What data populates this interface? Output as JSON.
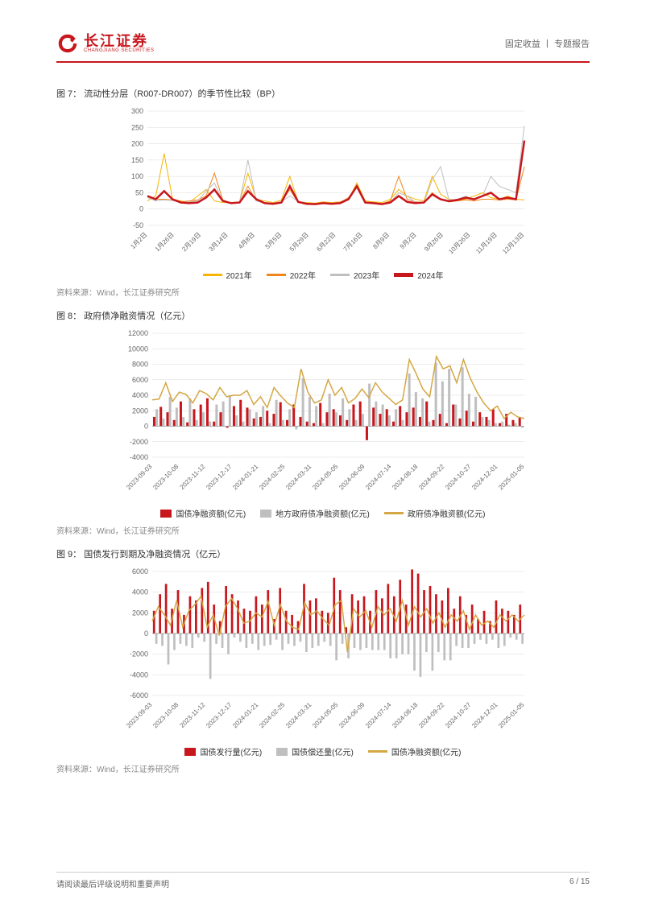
{
  "header": {
    "logo_cn": "长江证券",
    "logo_en": "CHANGJIANG SECURITIES",
    "right_text": "固定收益 丨 专题报告"
  },
  "chart7": {
    "type": "line",
    "caption_label": "图 7：",
    "caption_title": "流动性分层（R007-DR007）的季节性比较（BP）",
    "ylim": [
      -50,
      300
    ],
    "ytick_step": 50,
    "yticks": [
      -50,
      0,
      50,
      100,
      150,
      200,
      250,
      300
    ],
    "x_labels": [
      "1月2日",
      "1月26日",
      "2月19日",
      "3月14日",
      "4月8日",
      "5月5日",
      "5月29日",
      "6月22日",
      "7月16日",
      "8月9日",
      "9月2日",
      "9月26日",
      "10月26日",
      "11月19日",
      "12月13日"
    ],
    "series": [
      {
        "name": "2021年",
        "color": "#f7b500",
        "width": 1,
        "values": [
          25,
          40,
          170,
          30,
          25,
          20,
          40,
          60,
          25,
          20,
          20,
          22,
          110,
          30,
          25,
          20,
          28,
          100,
          22,
          20,
          18,
          22,
          20,
          22,
          30,
          80,
          25,
          22,
          20,
          30,
          60,
          40,
          30,
          25,
          100,
          45,
          30,
          28,
          30,
          40,
          50,
          35,
          30,
          40,
          30,
          28
        ]
      },
      {
        "name": "2022年",
        "color": "#f08519",
        "width": 1,
        "values": [
          40,
          30,
          30,
          28,
          22,
          25,
          28,
          40,
          110,
          28,
          18,
          20,
          70,
          25,
          20,
          18,
          22,
          60,
          20,
          18,
          16,
          18,
          18,
          20,
          35,
          70,
          20,
          18,
          16,
          25,
          100,
          30,
          22,
          20,
          50,
          30,
          22,
          25,
          28,
          25,
          30,
          30,
          28,
          30,
          28,
          130
        ]
      },
      {
        "name": "2023年",
        "color": "#bfbfbf",
        "width": 1,
        "values": [
          35,
          25,
          28,
          26,
          20,
          22,
          25,
          55,
          80,
          25,
          18,
          22,
          150,
          25,
          20,
          18,
          22,
          40,
          24,
          18,
          16,
          18,
          18,
          20,
          30,
          65,
          18,
          16,
          14,
          22,
          50,
          40,
          20,
          18,
          90,
          130,
          28,
          30,
          40,
          28,
          40,
          100,
          70,
          60,
          50,
          255
        ]
      },
      {
        "name": "2024年",
        "color": "#c8161d",
        "width": 2.5,
        "values": [
          40,
          30,
          55,
          30,
          20,
          18,
          20,
          35,
          60,
          25,
          18,
          20,
          55,
          30,
          18,
          16,
          20,
          70,
          22,
          16,
          15,
          18,
          16,
          18,
          30,
          70,
          20,
          18,
          15,
          20,
          40,
          22,
          18,
          20,
          45,
          30,
          24,
          28,
          35,
          30,
          40,
          50,
          30,
          35,
          30,
          210
        ]
      }
    ],
    "background_color": "#ffffff",
    "grid_color": "#d9d9d9",
    "axis_color": "#999999",
    "label_fontsize": 9,
    "source": "资料来源：Wind，长江证券研究所"
  },
  "chart8": {
    "type": "bar+line",
    "caption_label": "图 8：",
    "caption_title": "政府债净融资情况（亿元）",
    "ylim": [
      -4000,
      12000
    ],
    "ytick_step": 2000,
    "yticks": [
      -4000,
      -2000,
      0,
      2000,
      4000,
      6000,
      8000,
      10000,
      12000
    ],
    "x_labels": [
      "2023-09-03",
      "2023-10-08",
      "2023-11-12",
      "2023-12-17",
      "2024-01-21",
      "2024-02-25",
      "2024-03-31",
      "2024-05-05",
      "2024-06-09",
      "2024-07-14",
      "2024-08-18",
      "2024-09-22",
      "2024-10-27",
      "2024-12-01",
      "2025-01-05"
    ],
    "bar_series": [
      {
        "name": "国债净融资额(亿元)",
        "color": "#c8161d",
        "values": [
          1200,
          2500,
          1800,
          800,
          3200,
          500,
          2200,
          2800,
          3600,
          600,
          1800,
          -200,
          2600,
          3400,
          2400,
          1000,
          1200,
          2000,
          1600,
          3100,
          800,
          2800,
          1200,
          600,
          400,
          3000,
          1800,
          2200,
          1400,
          800,
          2800,
          3200,
          -1800,
          2400,
          1600,
          2200,
          600,
          2600,
          1800,
          2400,
          1200,
          3200,
          800,
          1600,
          400,
          2800,
          1000,
          2000,
          600,
          1800,
          1200,
          2200,
          400,
          1600,
          800,
          1200
        ]
      },
      {
        "name": "地方政府债净融资额(亿元)",
        "color": "#bfbfbf",
        "values": [
          2200,
          1000,
          3800,
          2400,
          1200,
          3600,
          800,
          1800,
          600,
          2800,
          3200,
          4000,
          1400,
          600,
          2200,
          1800,
          2600,
          400,
          3400,
          800,
          2200,
          -400,
          6200,
          3800,
          2600,
          400,
          4200,
          1800,
          3600,
          2200,
          800,
          1600,
          5500,
          3200,
          2800,
          1400,
          2200,
          800,
          6800,
          4400,
          3600,
          600,
          8200,
          5800,
          7400,
          2800,
          7600,
          4200,
          3800,
          1200,
          800,
          400,
          600,
          200,
          400,
          -200
        ]
      }
    ],
    "line_series": [
      {
        "name": "政府债净融资额(亿元)",
        "color": "#d4a744",
        "width": 1.5,
        "values": [
          3400,
          3500,
          5600,
          3200,
          4400,
          4100,
          3000,
          4600,
          4200,
          3400,
          5000,
          3800,
          4000,
          4000,
          4600,
          2800,
          3800,
          2400,
          5000,
          3900,
          3000,
          2400,
          7400,
          4400,
          3000,
          3400,
          6000,
          4000,
          5000,
          3000,
          3600,
          4800,
          3700,
          5600,
          4400,
          3600,
          2800,
          3400,
          8600,
          6800,
          4800,
          3800,
          9000,
          7400,
          7800,
          5600,
          8600,
          6200,
          4400,
          3000,
          2000,
          2600,
          1000,
          1800,
          1200,
          1000
        ]
      }
    ],
    "background_color": "#ffffff",
    "grid_color": "#d9d9d9",
    "axis_color": "#999999",
    "label_fontsize": 9,
    "source": "资料来源：Wind，长江证券研究所"
  },
  "chart9": {
    "type": "bar+line",
    "caption_label": "图 9：",
    "caption_title": "国债发行到期及净融资情况（亿元）",
    "ylim": [
      -6000,
      6000
    ],
    "ytick_step": 2000,
    "yticks": [
      -6000,
      -4000,
      -2000,
      0,
      2000,
      4000,
      6000
    ],
    "x_labels": [
      "2023-09-03",
      "2023-10-08",
      "2023-11-12",
      "2023-12-17",
      "2024-01-21",
      "2024-02-25",
      "2024-03-31",
      "2024-05-05",
      "2024-06-09",
      "2024-07-14",
      "2024-08-18",
      "2024-09-22",
      "2024-10-27",
      "2024-12-01",
      "2025-01-05"
    ],
    "bar_series": [
      {
        "name": "国债发行量(亿元)",
        "color": "#c8161d",
        "values": [
          2200,
          3800,
          4800,
          2400,
          4200,
          1800,
          3600,
          3200,
          4400,
          5000,
          2800,
          1200,
          4600,
          3800,
          3200,
          2400,
          2200,
          3600,
          2800,
          4200,
          1400,
          4400,
          2200,
          1800,
          1200,
          4800,
          3200,
          3400,
          2200,
          2000,
          5400,
          4200,
          600,
          3800,
          3200,
          3600,
          2200,
          4200,
          3400,
          4800,
          3600,
          5200,
          2800,
          6200,
          5800,
          4200,
          4600,
          3800,
          3200,
          4400,
          2400,
          3600,
          1800,
          2800,
          1400,
          2200,
          1200,
          3200,
          2400,
          2200,
          1800,
          2800
        ]
      },
      {
        "name": "国债偿还量(亿元)",
        "color": "#bfbfbf",
        "values": [
          -1000,
          -1200,
          -3000,
          -1600,
          -1000,
          -1200,
          -1400,
          -400,
          -800,
          -4400,
          -1000,
          -1400,
          -2000,
          -400,
          -800,
          -1400,
          -1000,
          -1600,
          -1200,
          -1100,
          -600,
          -1600,
          -1000,
          -1200,
          -800,
          -1800,
          -1400,
          -1200,
          -800,
          -1200,
          -2600,
          -1000,
          -2400,
          -1400,
          -1600,
          -1400,
          -1600,
          -1600,
          -1600,
          -2400,
          -2400,
          -2000,
          -2000,
          -3600,
          -4200,
          -1800,
          -3600,
          -1800,
          -2600,
          -2600,
          -1200,
          -1400,
          -1400,
          -1000,
          -600,
          -1000,
          -600,
          -1400,
          -1200,
          -400,
          -600,
          -1000
        ]
      }
    ],
    "line_series": [
      {
        "name": "国债净融资额(亿元)",
        "color": "#d4a744",
        "width": 1.5,
        "values": [
          1200,
          2600,
          1800,
          800,
          3200,
          600,
          2200,
          2800,
          3600,
          600,
          1800,
          -200,
          2600,
          3400,
          2400,
          1000,
          1200,
          2000,
          1600,
          3100,
          800,
          2800,
          1200,
          600,
          400,
          3000,
          1800,
          2200,
          1400,
          800,
          2800,
          3200,
          -1800,
          2400,
          1600,
          2200,
          600,
          2600,
          1800,
          2400,
          1200,
          3200,
          800,
          2600,
          1600,
          2400,
          1000,
          2000,
          600,
          1800,
          1200,
          2200,
          400,
          1800,
          800,
          1200,
          600,
          1800,
          1200,
          1800,
          1200,
          1800
        ]
      }
    ],
    "background_color": "#ffffff",
    "grid_color": "#d9d9d9",
    "axis_color": "#999999",
    "label_fontsize": 9,
    "source": "资料来源：Wind，长江证券研究所"
  },
  "footer": {
    "left": "请阅读最后评级说明和重要声明",
    "page_current": "6",
    "page_total": "15"
  }
}
